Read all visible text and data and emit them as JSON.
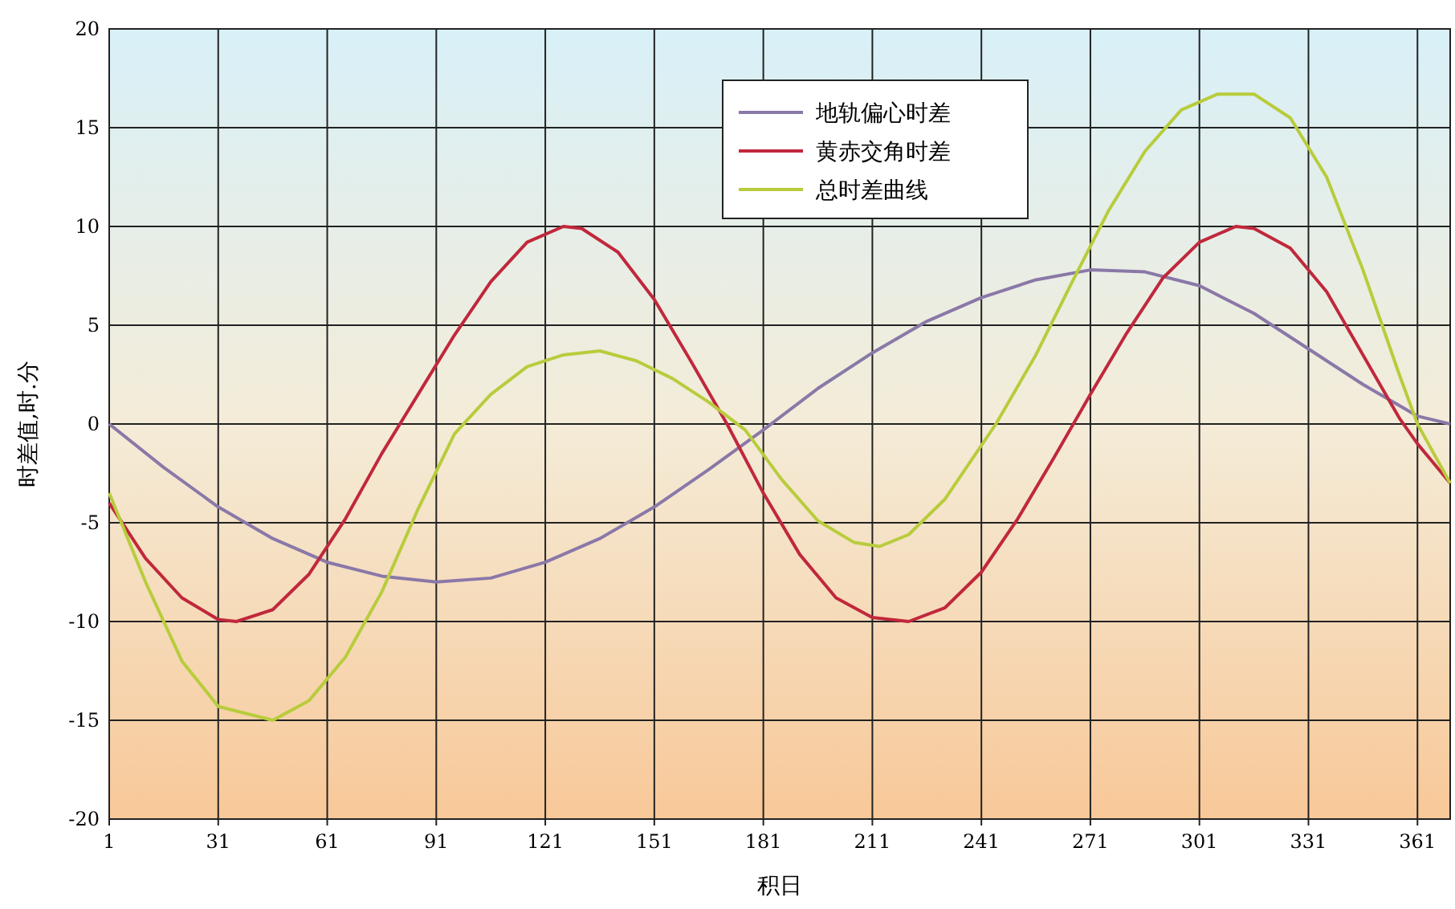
{
  "chart_data": {
    "type": "line",
    "xlabel": "积日",
    "ylabel": "时差值,时.分",
    "xlim": [
      1,
      370
    ],
    "ylim": [
      -20,
      20
    ],
    "xticks": [
      1,
      31,
      61,
      91,
      121,
      151,
      181,
      211,
      241,
      271,
      301,
      331,
      361
    ],
    "yticks": [
      -20,
      -15,
      -10,
      -5,
      0,
      5,
      10,
      15,
      20
    ],
    "grid": true,
    "legend": "top",
    "series": [
      {
        "name": "地轨偏心时差",
        "color": "#8a78a8",
        "x": [
          1,
          16,
          31,
          46,
          61,
          76,
          91,
          106,
          121,
          136,
          151,
          166,
          181,
          196,
          211,
          226,
          241,
          256,
          271,
          286,
          301,
          316,
          331,
          346,
          361,
          370
        ],
        "values": [
          0,
          -2.2,
          -4.2,
          -5.8,
          -7,
          -7.7,
          -8,
          -7.8,
          -7,
          -5.8,
          -4.2,
          -2.3,
          -0.3,
          1.8,
          3.6,
          5.2,
          6.4,
          7.3,
          7.8,
          7.7,
          7,
          5.6,
          3.8,
          2,
          0.4,
          0
        ]
      },
      {
        "name": "黄赤交角时差",
        "color": "#c0283c",
        "x": [
          1,
          11,
          21,
          31,
          36,
          46,
          56,
          66,
          76,
          86,
          96,
          106,
          116,
          126,
          131,
          141,
          151,
          161,
          171,
          181,
          191,
          201,
          211,
          221,
          231,
          241,
          251,
          261,
          271,
          281,
          291,
          301,
          311,
          316,
          326,
          336,
          346,
          356,
          361,
          370
        ],
        "values": [
          -4,
          -6.8,
          -8.8,
          -9.9,
          -10,
          -9.4,
          -7.6,
          -4.8,
          -1.5,
          1.5,
          4.5,
          7.2,
          9.2,
          10,
          9.9,
          8.7,
          6.3,
          3.2,
          0,
          -3.5,
          -6.6,
          -8.8,
          -9.8,
          -10,
          -9.3,
          -7.5,
          -4.8,
          -1.7,
          1.5,
          4.6,
          7.4,
          9.2,
          10,
          9.9,
          8.9,
          6.7,
          3.5,
          0.3,
          -1,
          -3
        ]
      },
      {
        "name": "总时差曲线",
        "color": "#b8cc3c",
        "x": [
          1,
          11,
          21,
          31,
          46,
          56,
          66,
          76,
          86,
          96,
          106,
          116,
          126,
          136,
          146,
          156,
          166,
          176,
          186,
          196,
          206,
          213,
          221,
          231,
          245,
          256,
          266,
          276,
          286,
          296,
          306,
          316,
          326,
          336,
          346,
          356,
          361,
          370
        ],
        "values": [
          -3.5,
          -8,
          -12,
          -14.3,
          -15,
          -14,
          -11.8,
          -8.5,
          -4.3,
          -0.5,
          1.5,
          2.9,
          3.5,
          3.7,
          3.2,
          2.3,
          1.1,
          -0.3,
          -2.8,
          -4.9,
          -6,
          -6.2,
          -5.6,
          -3.8,
          0,
          3.5,
          7.2,
          10.8,
          13.8,
          15.9,
          16.7,
          16.7,
          15.5,
          12.5,
          7.8,
          2.5,
          0,
          -3
        ]
      }
    ]
  }
}
